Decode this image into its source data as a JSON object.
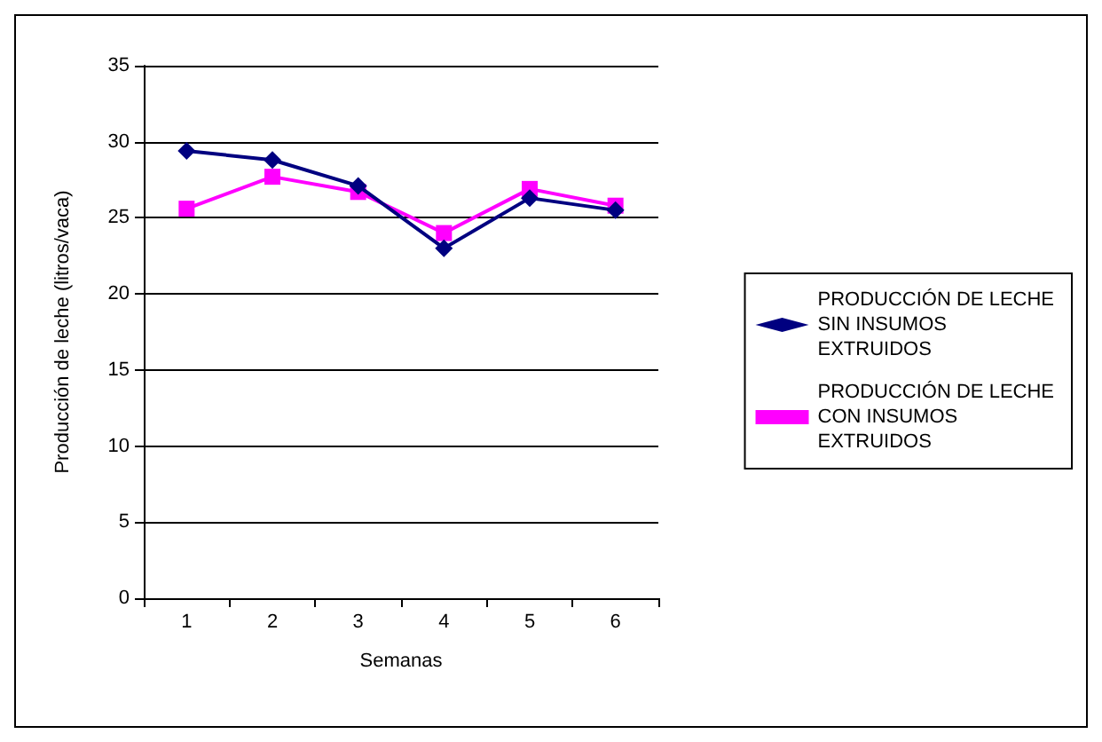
{
  "chart_data": {
    "type": "line",
    "xlabel": "Semanas",
    "ylabel": "Producción de leche (litros/vaca)",
    "categories": [
      "1",
      "2",
      "3",
      "4",
      "5",
      "6"
    ],
    "series": [
      {
        "name": "PRODUCCIÓN DE LECHE SIN INSUMOS EXTRUIDOS",
        "color": "#000080",
        "marker": "diamond",
        "values": [
          29.4,
          28.8,
          27.1,
          23.0,
          26.3,
          25.5
        ]
      },
      {
        "name": "PRODUCCIÓN DE LECHE CON INSUMOS EXTRUIDOS",
        "color": "#ff00ff",
        "marker": "square",
        "values": [
          25.6,
          27.7,
          26.7,
          24.0,
          26.9,
          25.8
        ]
      }
    ],
    "ylim": [
      0,
      35
    ],
    "yticks": [
      0,
      5,
      10,
      15,
      20,
      25,
      30,
      35
    ],
    "grid": "y",
    "legend": "right",
    "line_style": "solid"
  }
}
